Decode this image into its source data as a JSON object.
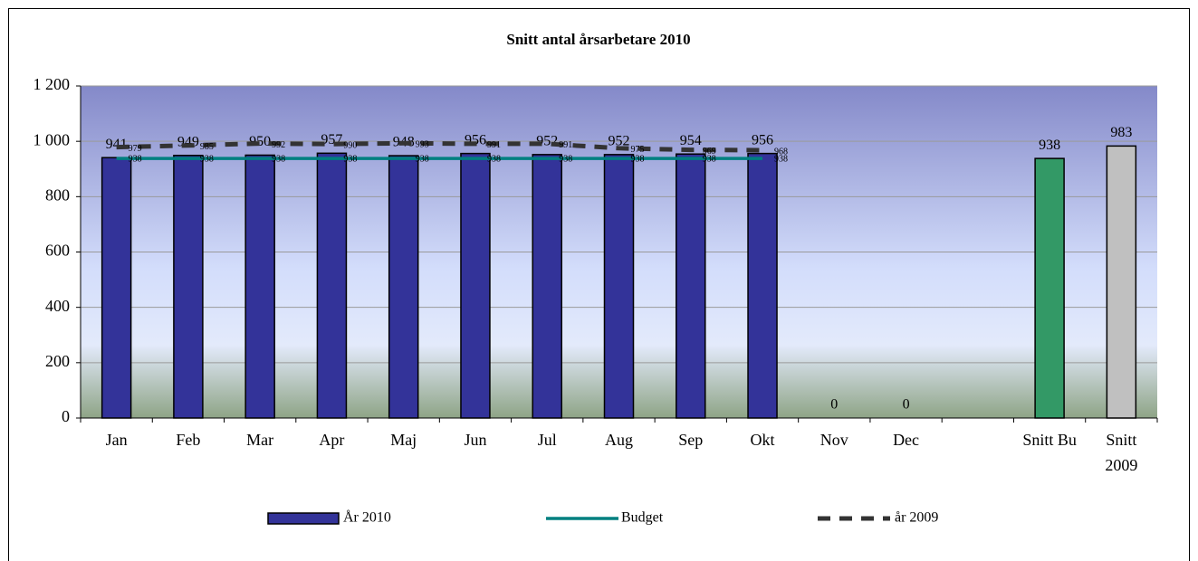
{
  "chart_data": {
    "type": "bar",
    "title": "Snitt antal årsarbetare 2010",
    "categories": [
      "Jan",
      "Feb",
      "Mar",
      "Apr",
      "Maj",
      "Jun",
      "Jul",
      "Aug",
      "Sep",
      "Okt",
      "Nov",
      "Dec",
      null,
      "Snitt Bu",
      "Snitt 2009"
    ],
    "series": [
      {
        "name": "År 2010",
        "type": "bar",
        "color": "#333399",
        "colors": [
          "#333399",
          "#333399",
          "#333399",
          "#333399",
          "#333399",
          "#333399",
          "#333399",
          "#333399",
          "#333399",
          "#333399",
          "#333399",
          "#333399",
          "#333399",
          "#339966",
          "#c0c0c0"
        ],
        "values": [
          941,
          949,
          950,
          957,
          948,
          956,
          952,
          952,
          954,
          956,
          0,
          0,
          null,
          938,
          983
        ]
      },
      {
        "name": "Budget",
        "type": "line",
        "color": "#008080",
        "values": [
          938,
          938,
          938,
          938,
          938,
          938,
          938,
          938,
          938,
          938,
          null,
          null,
          null,
          null,
          null
        ]
      },
      {
        "name": "år 2009",
        "type": "dashed",
        "color": "#333333",
        "values": [
          979,
          985,
          992,
          990,
          993,
          991,
          991,
          975,
          969,
          968,
          null,
          null,
          null,
          null,
          null
        ]
      }
    ],
    "ylim": [
      0,
      1200
    ],
    "yticks": [
      0,
      200,
      400,
      600,
      800,
      {
        "value": 1000,
        "label": "1 000"
      },
      {
        "value": 1200,
        "label": "1 200"
      }
    ],
    "grid": true,
    "legend": "bottom"
  }
}
